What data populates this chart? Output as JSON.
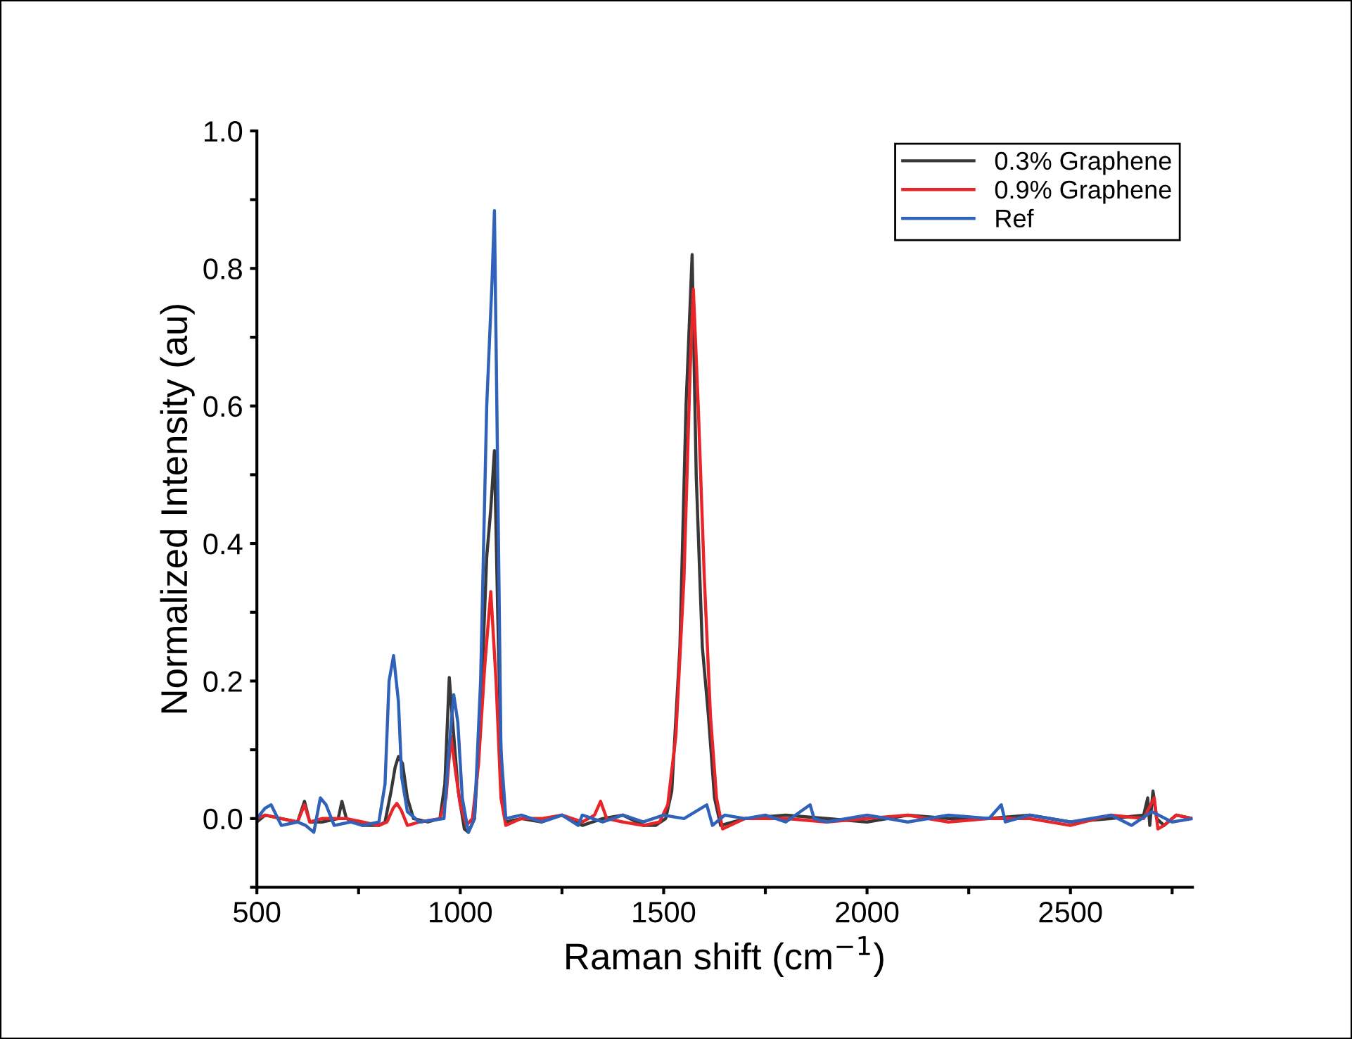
{
  "chart_data": {
    "type": "line",
    "xlabel": "Raman shift (cm$^{−1}$)",
    "ylabel": "Normalized Intensity (au)",
    "xlim": [
      500,
      2800
    ],
    "ylim": [
      -0.1,
      1.0
    ],
    "xticks": [
      500,
      {
        "value": 750,
        "label": null
      },
      1000,
      {
        "value": 1250,
        "label": null
      },
      1500,
      {
        "value": 1750,
        "label": null
      },
      2000,
      {
        "value": 2250,
        "label": null
      },
      2500,
      {
        "value": 2750,
        "label": null
      }
    ],
    "yticks": [
      {
        "value": -0.1,
        "label": null
      },
      {
        "value": 0.0,
        "label": "0.0"
      },
      {
        "value": 0.1,
        "label": null
      },
      {
        "value": 0.2,
        "label": "0.2"
      },
      {
        "value": 0.3,
        "label": null
      },
      {
        "value": 0.4,
        "label": "0.4"
      },
      {
        "value": 0.5,
        "label": null
      },
      {
        "value": 0.6,
        "label": "0.6"
      },
      {
        "value": 0.7,
        "label": null
      },
      {
        "value": 0.8,
        "label": "0.8"
      },
      {
        "value": 0.9,
        "label": null
      },
      {
        "value": 1.0,
        "label": "1.0"
      }
    ],
    "grid": false,
    "legend": "top right",
    "marker": "none",
    "line_style": "solid",
    "series": [
      {
        "name": "0.3% Graphene",
        "color": "#383838",
        "x": [
          500,
          520,
          560,
          600,
          617,
          630,
          660,
          700,
          709,
          720,
          760,
          800,
          815,
          830,
          840,
          848,
          858,
          870,
          885,
          920,
          950,
          962,
          973,
          980,
          995,
          1010,
          1020,
          1035,
          1050,
          1065,
          1075,
          1084,
          1092,
          1102,
          1112,
          1150,
          1200,
          1250,
          1300,
          1350,
          1400,
          1450,
          1480,
          1505,
          1520,
          1540,
          1555,
          1570,
          1580,
          1595,
          1610,
          1625,
          1640,
          1700,
          1800,
          1900,
          2000,
          2100,
          2200,
          2300,
          2400,
          2500,
          2600,
          2680,
          2690,
          2695,
          2703,
          2712,
          2730,
          2760,
          2800
        ],
        "values": [
          -0.005,
          0.005,
          0.0,
          -0.005,
          0.025,
          -0.005,
          -0.005,
          0.0,
          0.025,
          0.0,
          -0.01,
          -0.01,
          -0.005,
          0.04,
          0.075,
          0.09,
          0.08,
          0.03,
          0.0,
          -0.005,
          0.0,
          0.05,
          0.205,
          0.15,
          0.04,
          -0.015,
          -0.02,
          0.0,
          0.15,
          0.38,
          0.45,
          0.535,
          0.3,
          0.05,
          -0.005,
          0.0,
          -0.005,
          0.005,
          -0.01,
          0.0,
          0.005,
          -0.01,
          -0.01,
          0.0,
          0.04,
          0.25,
          0.6,
          0.82,
          0.5,
          0.25,
          0.15,
          0.03,
          -0.01,
          0.0,
          0.005,
          0.0,
          -0.005,
          0.005,
          0.0,
          0.0,
          0.005,
          -0.005,
          0.0,
          0.005,
          0.03,
          -0.01,
          0.04,
          0.0,
          -0.01,
          0.005,
          0.0
        ]
      },
      {
        "name": "0.9% Graphene",
        "color": "#e8262a",
        "x": [
          500,
          520,
          560,
          600,
          617,
          630,
          660,
          700,
          720,
          760,
          800,
          820,
          835,
          844,
          855,
          870,
          900,
          950,
          965,
          977,
          988,
          1000,
          1015,
          1030,
          1045,
          1060,
          1075,
          1088,
          1100,
          1112,
          1150,
          1200,
          1250,
          1300,
          1330,
          1345,
          1360,
          1400,
          1450,
          1490,
          1510,
          1530,
          1550,
          1565,
          1573,
          1585,
          1600,
          1615,
          1630,
          1645,
          1700,
          1800,
          1900,
          2000,
          2100,
          2200,
          2300,
          2400,
          2500,
          2600,
          2680,
          2706,
          2715,
          2730,
          2760,
          2800
        ],
        "values": [
          0.0,
          0.005,
          0.0,
          -0.005,
          0.02,
          -0.005,
          0.0,
          0.0,
          0.0,
          -0.005,
          -0.01,
          -0.005,
          0.015,
          0.022,
          0.012,
          -0.01,
          -0.005,
          0.0,
          0.03,
          0.12,
          0.07,
          0.02,
          -0.01,
          0.0,
          0.08,
          0.22,
          0.33,
          0.2,
          0.03,
          -0.01,
          0.0,
          0.0,
          0.005,
          -0.005,
          0.005,
          0.025,
          0.0,
          -0.005,
          -0.01,
          -0.005,
          0.02,
          0.12,
          0.35,
          0.65,
          0.77,
          0.6,
          0.35,
          0.15,
          0.03,
          -0.015,
          0.0,
          0.0,
          -0.005,
          0.0,
          0.005,
          -0.005,
          0.0,
          0.0,
          -0.01,
          0.005,
          0.0,
          0.03,
          -0.015,
          -0.01,
          0.005,
          0.0
        ]
      },
      {
        "name": "Ref",
        "color": "#2f62b8",
        "x": [
          500,
          520,
          535,
          560,
          600,
          620,
          640,
          656,
          670,
          690,
          730,
          760,
          800,
          815,
          825,
          836,
          848,
          856,
          870,
          900,
          960,
          972,
          984,
          994,
          1005,
          1020,
          1035,
          1050,
          1065,
          1078,
          1084,
          1092,
          1100,
          1112,
          1150,
          1200,
          1250,
          1290,
          1300,
          1350,
          1400,
          1450,
          1500,
          1550,
          1606,
          1620,
          1650,
          1700,
          1750,
          1800,
          1860,
          1870,
          1900,
          2000,
          2100,
          2200,
          2300,
          2330,
          2340,
          2400,
          2500,
          2600,
          2650,
          2700,
          2750,
          2800
        ],
        "values": [
          0.0,
          0.015,
          0.02,
          -0.01,
          -0.005,
          -0.01,
          -0.02,
          0.03,
          0.02,
          -0.01,
          -0.005,
          -0.01,
          -0.005,
          0.05,
          0.2,
          0.237,
          0.17,
          0.06,
          0.01,
          -0.005,
          0.0,
          0.1,
          0.18,
          0.14,
          0.03,
          -0.02,
          0.0,
          0.2,
          0.6,
          0.78,
          0.884,
          0.5,
          0.1,
          0.0,
          0.005,
          -0.005,
          0.005,
          -0.01,
          0.005,
          -0.005,
          0.005,
          -0.005,
          0.005,
          0.0,
          0.02,
          -0.01,
          0.005,
          0.0,
          0.005,
          -0.005,
          0.02,
          0.0,
          -0.005,
          0.005,
          -0.005,
          0.005,
          0.0,
          0.02,
          -0.005,
          0.005,
          -0.005,
          0.005,
          -0.01,
          0.01,
          -0.005,
          0.0
        ]
      }
    ]
  }
}
